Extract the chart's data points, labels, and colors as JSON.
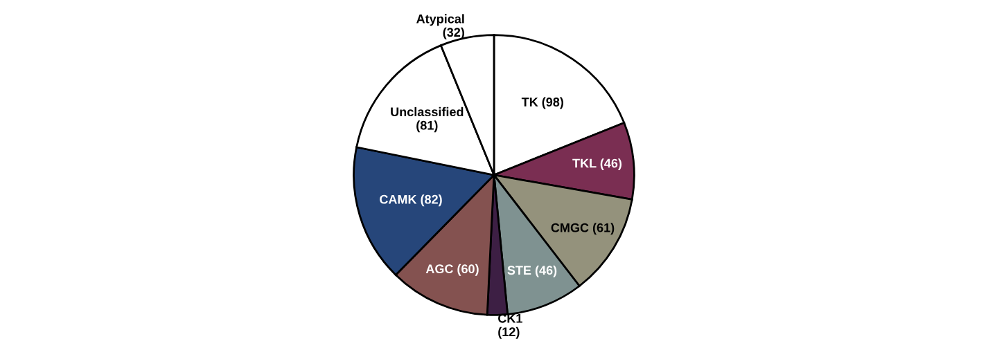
{
  "chart_data": {
    "type": "pie",
    "categories": [
      "TK (98)",
      "TKL (46)",
      "CMGC (61)",
      "STE (46)",
      "CK1\n(12)",
      "AGC (60)",
      "CAMK (82)",
      "Unclassified\n(81)",
      "Atypical\n(32)"
    ],
    "values": [
      98,
      46,
      61,
      46,
      12,
      60,
      82,
      81,
      32
    ],
    "colors": [
      "#ffffff",
      "#7a2e52",
      "#94927c",
      "#7f9291",
      "#3d1f44",
      "#845250",
      "#26467a",
      "#ffffff",
      "#ffffff"
    ],
    "legend": false
  }
}
